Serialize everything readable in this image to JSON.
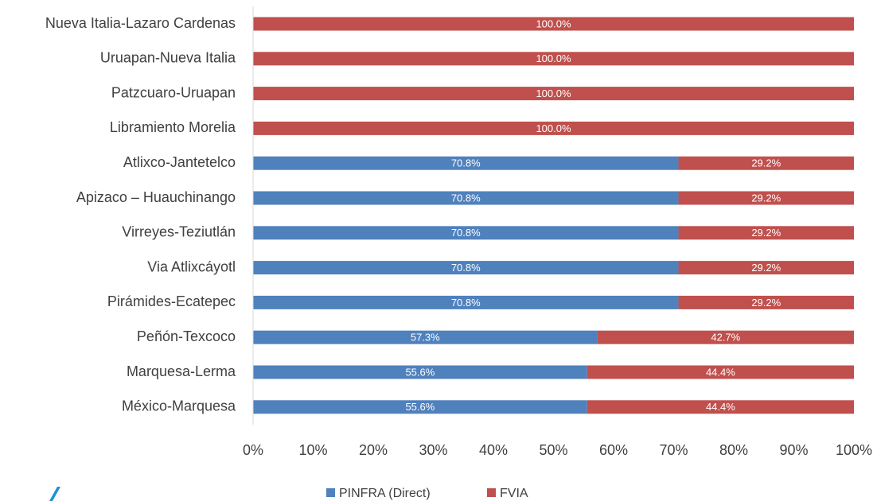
{
  "chart_data": {
    "type": "stacked_bar_horizontal",
    "categories": [
      "Nueva Italia-Lazaro Cardenas",
      "Uruapan-Nueva Italia",
      "Patzcuaro-Uruapan",
      "Libramiento Morelia",
      "Atlixco-Jantetelco",
      "Apizaco – Huauchinango",
      "Virreyes-Teziutlán",
      "Via Atlixcáyotl",
      "Pirámides-Ecatepec",
      "Peñón-Texcoco",
      "Marquesa-Lerma",
      "México-Marquesa"
    ],
    "series": [
      {
        "name": "PINFRA (Direct)",
        "color": "#4f81bd",
        "values": [
          0,
          0,
          0,
          0,
          70.8,
          70.8,
          70.8,
          70.8,
          70.8,
          57.3,
          55.6,
          55.6
        ],
        "value_labels": [
          null,
          null,
          null,
          null,
          "70.8%",
          "70.8%",
          "70.8%",
          "70.8%",
          "70.8%",
          "57.3%",
          "55.6%",
          "55.6%"
        ]
      },
      {
        "name": "FVIA",
        "color": "#c0504d",
        "values": [
          100,
          100,
          100,
          100,
          29.2,
          29.2,
          29.2,
          29.2,
          29.2,
          42.7,
          44.4,
          44.4
        ],
        "value_labels": [
          "100.0%",
          "100.0%",
          "100.0%",
          "100.0%",
          "29.2%",
          "29.2%",
          "29.2%",
          "29.2%",
          "29.2%",
          "42.7%",
          "44.4%",
          "44.4%"
        ]
      }
    ],
    "xlim": [
      0,
      100
    ],
    "xticks": [
      {
        "value": 0,
        "label": "0%"
      },
      {
        "value": 10,
        "label": "10%"
      },
      {
        "value": 20,
        "label": "20%"
      },
      {
        "value": 30,
        "label": "30%"
      },
      {
        "value": 40,
        "label": "40%"
      },
      {
        "value": 50,
        "label": "50%"
      },
      {
        "value": 60,
        "label": "60%"
      },
      {
        "value": 70,
        "label": "70%"
      },
      {
        "value": 80,
        "label": "80%"
      },
      {
        "value": 90,
        "label": "90%"
      },
      {
        "value": 100,
        "label": "100%"
      }
    ],
    "legend": "bottom"
  }
}
